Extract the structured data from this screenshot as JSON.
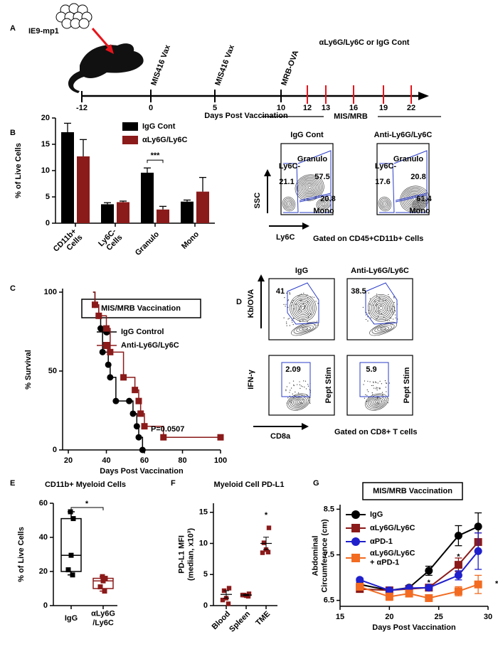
{
  "timeline": {
    "panel": "A",
    "cell_label": "IE9-mp1",
    "ticks": [
      -12,
      0,
      5,
      10,
      12,
      13,
      16,
      19,
      22
    ],
    "xlabel": "Days Post Vaccination",
    "events": [
      {
        "day": 0,
        "label": "MIS416 Vax"
      },
      {
        "day": 5,
        "label": "MIS416 Vax"
      },
      {
        "day": 10,
        "label": "MRB-OVA"
      }
    ],
    "treatment": {
      "label": "αLy6G/Ly6C or IgG Cont",
      "days": [
        12,
        13,
        16,
        19,
        22
      ],
      "color": "#e8141b"
    }
  },
  "flow_b": {
    "header": "MIS/MRB",
    "ylabel": "SSC",
    "xlabel": "Ly6C",
    "note": "Gated on CD45+CD11b+ Cells",
    "plots": [
      {
        "title": "IgG Cont",
        "gates": [
          {
            "name": "Granulo",
            "value": 57.5
          },
          {
            "name": "Ly6C-",
            "value": 21.1
          },
          {
            "name": "Mono",
            "value": 20.8
          }
        ]
      },
      {
        "title": "Anti-Ly6G/Ly6C",
        "gates": [
          {
            "name": "Granulo",
            "value": 20.8
          },
          {
            "name": "Ly6C-",
            "value": 17.6
          },
          {
            "name": "Mono",
            "value": 61.4
          }
        ]
      }
    ]
  },
  "flow_d": {
    "panel": "D",
    "columns": [
      "IgG",
      "Anti-Ly6G/Ly6C"
    ],
    "xlabel": "CD8a",
    "note": "Gated on CD8+ T cells",
    "side_label": "Pept Stim",
    "rows": [
      {
        "ylabel": "Kb/OVA",
        "values": [
          41,
          38.5
        ]
      },
      {
        "ylabel": "IFN-γ",
        "values": [
          2.09,
          5.9
        ]
      }
    ]
  },
  "chart_data": [
    {
      "type": "bar",
      "panel": "B",
      "ylabel": "% of Live Cells",
      "categories": [
        "CD11b+ Cells",
        "Ly6C- Cells",
        "Granulo",
        "Mono"
      ],
      "series": [
        {
          "name": "IgG Cont",
          "color": "#000000",
          "values": [
            17.3,
            3.6,
            9.6,
            4.1
          ],
          "errors": [
            1.7,
            0.3,
            0.9,
            0.3
          ]
        },
        {
          "name": "αLy6G/Ly6C",
          "color": "#8b1a1a",
          "values": [
            12.7,
            4.0,
            2.6,
            6.0
          ],
          "errors": [
            3.2,
            0.2,
            0.6,
            2.7
          ]
        }
      ],
      "ylim": [
        0,
        20
      ],
      "yticks": [
        0,
        5,
        10,
        15,
        20
      ],
      "annotations": [
        "***"
      ]
    },
    {
      "type": "step",
      "panel": "C",
      "title": "MIS/MRB Vaccination",
      "xlabel": "Days Post Vaccination",
      "ylabel": "% Survival",
      "series": [
        {
          "name": "IgG Control",
          "color": "#000000",
          "marker": "circle",
          "x": [
            33,
            34,
            36,
            37,
            38,
            41,
            42,
            45,
            52,
            54,
            56,
            57,
            59
          ],
          "values": [
            100,
            92,
            85,
            77,
            62,
            54,
            46,
            31,
            31,
            23,
            15,
            8,
            0
          ]
        },
        {
          "name": "Anti-Ly6G/Ly6C",
          "color": "#8b1a1a",
          "marker": "square",
          "x": [
            33,
            34,
            36,
            40,
            42,
            49,
            55,
            57,
            58,
            60,
            70,
            100
          ],
          "values": [
            100,
            92,
            85,
            77,
            62,
            46,
            38,
            31,
            23,
            15,
            8,
            8
          ]
        }
      ],
      "xlim": [
        17,
        100
      ],
      "xticks": [
        20,
        40,
        60,
        80,
        100
      ],
      "ylim": [
        0,
        100
      ],
      "yticks": [
        0,
        50,
        100
      ],
      "annotations": [
        "P=0.0507"
      ]
    },
    {
      "type": "box",
      "panel": "E",
      "title": "CD11b+ Myeloid Cells",
      "ylabel": "% of Live Cells",
      "groups": [
        {
          "label": "IgG",
          "color": "#000000",
          "points": [
            55,
            51,
            29.5,
            21,
            18
          ],
          "min": 18,
          "q1": 20,
          "median": 29.5,
          "q3": 51,
          "max": 55
        },
        {
          "label": "αLy6G/Ly6C",
          "color": "#8b1a1a",
          "points": [
            17,
            16,
            14.5,
            11,
            8.5
          ],
          "min": 8.5,
          "q1": 10,
          "median": 14.5,
          "q3": 16,
          "max": 17
        }
      ],
      "ylim": [
        0,
        60
      ],
      "yticks": [
        0,
        20,
        40,
        60
      ],
      "annotations": [
        "*"
      ]
    },
    {
      "type": "dot",
      "panel": "F",
      "title": "Myeloid Cell PD-L1",
      "ylabel": "PD-L1 MFI (median, x10³)",
      "color": "#8b1a1a",
      "categories": [
        "Blood",
        "Spleen",
        "TME"
      ],
      "points": [
        [
          2.8,
          2.4,
          1.2,
          0.9,
          0.3
        ],
        [
          1.9,
          1.7,
          1.6,
          1.7,
          1.5
        ],
        [
          12.5,
          10.1,
          9.0,
          8.5,
          8.6
        ]
      ],
      "mean": [
        1.8,
        1.7,
        10.0
      ],
      "sem": [
        0.6,
        0.1,
        1.0
      ],
      "ylim": [
        0,
        16
      ],
      "yticks": [
        0,
        5,
        10,
        15
      ],
      "annotations": [
        "*"
      ]
    },
    {
      "type": "line",
      "panel": "G",
      "title": "MIS/MRB Vaccination",
      "xlabel": "Days Post Vaccination",
      "ylabel": "Abdominal Circumference (cm)",
      "x": [
        17,
        20,
        22,
        24,
        27,
        29
      ],
      "series": [
        {
          "name": "IgG",
          "color": "#000000",
          "values": [
            6.85,
            6.72,
            6.78,
            7.15,
            7.92,
            8.12
          ],
          "errors": [
            0.05,
            0.04,
            0.05,
            0.1,
            0.22,
            0.3
          ]
        },
        {
          "name": "αLy6G/Ly6C",
          "color": "#8b1a1a",
          "values": [
            6.75,
            6.72,
            6.75,
            6.78,
            7.28,
            7.78
          ],
          "errors": [
            0.04,
            0.04,
            0.04,
            0.05,
            0.15,
            0.2
          ]
        },
        {
          "name": "αPD-1",
          "color": "#2020cc",
          "values": [
            6.95,
            6.72,
            6.77,
            6.78,
            7.05,
            7.58
          ],
          "errors": [
            0.04,
            0.03,
            0.04,
            0.04,
            0.1,
            0.4
          ]
        },
        {
          "name": "αLy6G/Ly6C + αPD-1",
          "color": "#f26b21",
          "values": [
            6.8,
            6.58,
            6.65,
            6.55,
            6.7,
            6.85
          ],
          "errors": [
            0.05,
            0.08,
            0.04,
            0.03,
            0.1,
            0.2
          ]
        }
      ],
      "xlim": [
        15,
        30
      ],
      "xticks": [
        15,
        20,
        25,
        30
      ],
      "ylim": [
        6.37,
        8.6
      ],
      "yticks": [
        6.5,
        7.5,
        8.5
      ],
      "annotations": [
        "*",
        "*",
        "**"
      ]
    }
  ]
}
